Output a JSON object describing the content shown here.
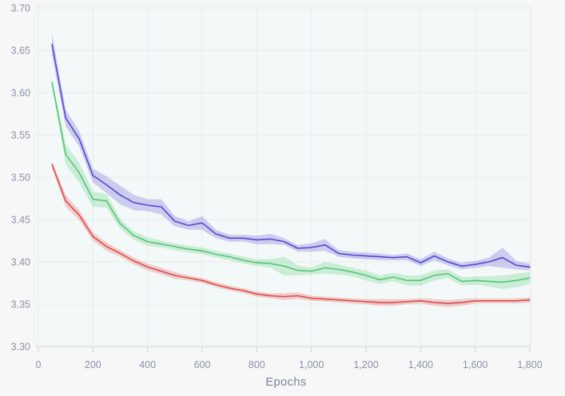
{
  "page": {
    "background_color": "#f7f7f8",
    "plot_background_color": "#f3f9f8",
    "gridline_color": "#e7ebee",
    "axis_line_color": "#d8dce2",
    "tick_text_color": "#8d91a4"
  },
  "chart_data": {
    "type": "line",
    "title": "",
    "xlabel": "Epochs",
    "ylabel": "",
    "xlim": [
      0,
      1800
    ],
    "ylim": [
      3.3,
      3.7
    ],
    "grid": true,
    "legend_position": "none",
    "x_ticks": [
      {
        "value": 0,
        "label": "0"
      },
      {
        "value": 200,
        "label": "200"
      },
      {
        "value": 400,
        "label": "400"
      },
      {
        "value": 600,
        "label": "600"
      },
      {
        "value": 800,
        "label": "800"
      },
      {
        "value": 1000,
        "label": "1,000"
      },
      {
        "value": 1200,
        "label": "1,200"
      },
      {
        "value": 1400,
        "label": "1,400"
      },
      {
        "value": 1600,
        "label": "1,600"
      },
      {
        "value": 1800,
        "label": "1,800"
      }
    ],
    "y_ticks": [
      {
        "value": 3.3,
        "label": "3.30"
      },
      {
        "value": 3.35,
        "label": "3.35"
      },
      {
        "value": 3.4,
        "label": "3.40"
      },
      {
        "value": 3.45,
        "label": "3.45"
      },
      {
        "value": 3.5,
        "label": "3.50"
      },
      {
        "value": 3.55,
        "label": "3.55"
      },
      {
        "value": 3.6,
        "label": "3.60"
      },
      {
        "value": 3.65,
        "label": "3.65"
      },
      {
        "value": 3.7,
        "label": "3.70"
      }
    ],
    "x": [
      50,
      100,
      150,
      200,
      250,
      300,
      350,
      400,
      450,
      500,
      550,
      600,
      650,
      700,
      750,
      800,
      850,
      900,
      950,
      1000,
      1050,
      1100,
      1150,
      1200,
      1250,
      1300,
      1350,
      1400,
      1450,
      1500,
      1550,
      1600,
      1650,
      1700,
      1750,
      1800
    ],
    "series": [
      {
        "name": "red-series",
        "color": "#e14b4b",
        "band_opacity": 0.25,
        "values": [
          3.515,
          3.472,
          3.455,
          3.43,
          3.418,
          3.41,
          3.401,
          3.394,
          3.389,
          3.384,
          3.381,
          3.378,
          3.373,
          3.369,
          3.366,
          3.362,
          3.36,
          3.359,
          3.36,
          3.357,
          3.356,
          3.355,
          3.354,
          3.353,
          3.352,
          3.352,
          3.353,
          3.354,
          3.352,
          3.351,
          3.352,
          3.354,
          3.354,
          3.354,
          3.354,
          3.355
        ],
        "band_half_width": [
          0.004,
          0.007,
          0.006,
          0.005,
          0.005,
          0.004,
          0.004,
          0.004,
          0.004,
          0.004,
          0.003,
          0.003,
          0.003,
          0.003,
          0.003,
          0.003,
          0.003,
          0.004,
          0.004,
          0.003,
          0.003,
          0.003,
          0.003,
          0.003,
          0.004,
          0.004,
          0.003,
          0.003,
          0.004,
          0.004,
          0.004,
          0.003,
          0.003,
          0.003,
          0.003,
          0.003
        ]
      },
      {
        "name": "green-series",
        "color": "#55c673",
        "band_opacity": 0.25,
        "values": [
          3.612,
          3.527,
          3.505,
          3.474,
          3.472,
          3.445,
          3.431,
          3.424,
          3.421,
          3.418,
          3.415,
          3.413,
          3.409,
          3.406,
          3.402,
          3.399,
          3.398,
          3.395,
          3.39,
          3.389,
          3.393,
          3.391,
          3.388,
          3.384,
          3.379,
          3.382,
          3.378,
          3.378,
          3.384,
          3.386,
          3.377,
          3.378,
          3.377,
          3.376,
          3.378,
          3.381
        ],
        "band_half_width": [
          0.004,
          0.012,
          0.012,
          0.009,
          0.008,
          0.006,
          0.005,
          0.005,
          0.004,
          0.004,
          0.004,
          0.004,
          0.004,
          0.004,
          0.004,
          0.004,
          0.005,
          0.011,
          0.006,
          0.004,
          0.007,
          0.006,
          0.005,
          0.006,
          0.005,
          0.005,
          0.006,
          0.006,
          0.006,
          0.005,
          0.005,
          0.005,
          0.006,
          0.008,
          0.008,
          0.007
        ]
      },
      {
        "name": "blue-series",
        "color": "#5349d1",
        "band_opacity": 0.25,
        "values": [
          3.657,
          3.57,
          3.545,
          3.502,
          3.491,
          3.479,
          3.47,
          3.467,
          3.465,
          3.448,
          3.443,
          3.446,
          3.433,
          3.428,
          3.428,
          3.426,
          3.427,
          3.424,
          3.416,
          3.417,
          3.42,
          3.41,
          3.408,
          3.407,
          3.406,
          3.405,
          3.406,
          3.399,
          3.407,
          3.4,
          3.395,
          3.397,
          3.4,
          3.405,
          3.396,
          3.394
        ],
        "band_half_width": [
          0.013,
          0.01,
          0.009,
          0.008,
          0.01,
          0.011,
          0.009,
          0.007,
          0.009,
          0.006,
          0.005,
          0.008,
          0.005,
          0.004,
          0.004,
          0.005,
          0.006,
          0.004,
          0.004,
          0.005,
          0.007,
          0.004,
          0.004,
          0.004,
          0.004,
          0.003,
          0.004,
          0.004,
          0.005,
          0.004,
          0.004,
          0.004,
          0.005,
          0.012,
          0.005,
          0.004
        ]
      }
    ]
  }
}
